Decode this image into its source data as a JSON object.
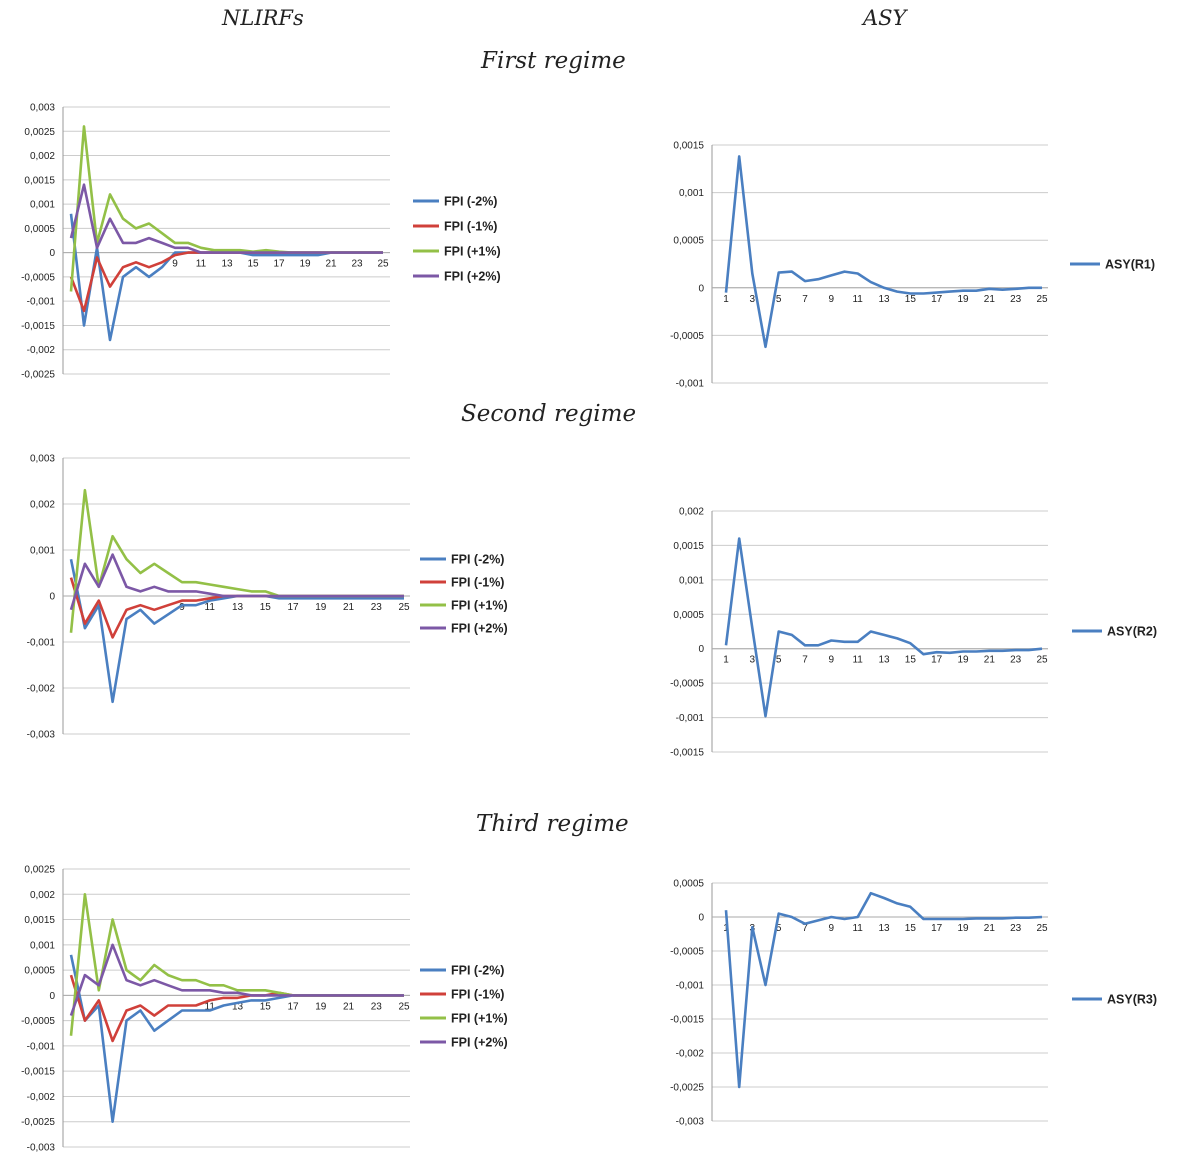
{
  "headers": {
    "left": "NLIRFs",
    "right": "ASY"
  },
  "regimes": [
    "First regime",
    "Second regime",
    "Third regime"
  ],
  "colors": {
    "fpi_m2": "#4a7fc1",
    "fpi_m1": "#d0403a",
    "fpi_p1": "#93c047",
    "fpi_p2": "#7c58a6",
    "asy": "#4a7fc1",
    "grid": "#cccccc"
  },
  "chart_data": [
    {
      "type": "line",
      "title": "",
      "categories": [
        1,
        2,
        3,
        4,
        5,
        6,
        7,
        8,
        9,
        10,
        11,
        12,
        13,
        14,
        15,
        16,
        17,
        18,
        19,
        20,
        21,
        22,
        23,
        24,
        25
      ],
      "x_tick_labels": [
        "9",
        "11",
        "13",
        "15",
        "17",
        "19",
        "21",
        "23",
        "25"
      ],
      "y_tick_labels": [
        "0,003",
        "0,0025",
        "0,002",
        "0,0015",
        "0,001",
        "0,0005",
        "0",
        "-0,0005",
        "-0,001",
        "-0,0015",
        "-0,002",
        "-0,0025"
      ],
      "ylim": [
        -0.0025,
        0.003
      ],
      "legend_position": "right",
      "series": [
        {
          "name": "FPI (-2%)",
          "color": "#4a7fc1",
          "values": [
            0.0008,
            -0.0015,
            0.0001,
            -0.0018,
            -0.0005,
            -0.0003,
            -0.0005,
            -0.0003,
            0,
            0,
            0,
            0,
            0,
            0,
            -5e-05,
            -5e-05,
            -5e-05,
            -5e-05,
            -5e-05,
            -5e-05,
            0,
            0,
            0,
            0,
            0
          ]
        },
        {
          "name": "FPI (-1%)",
          "color": "#d0403a",
          "values": [
            -0.0005,
            -0.0012,
            -0.0001,
            -0.0007,
            -0.0003,
            -0.0002,
            -0.0003,
            -0.0002,
            -5e-05,
            0,
            0,
            0,
            0,
            0,
            0,
            0,
            0,
            0,
            0,
            0,
            0,
            0,
            0,
            0,
            0
          ]
        },
        {
          "name": "FPI (+1%)",
          "color": "#93c047",
          "values": [
            -0.0008,
            0.0026,
            0.0002,
            0.0012,
            0.0007,
            0.0005,
            0.0006,
            0.0004,
            0.0002,
            0.0002,
            0.0001,
            5e-05,
            5e-05,
            5e-05,
            2e-05,
            5e-05,
            2e-05,
            0,
            0,
            0,
            0,
            0,
            0,
            0,
            0
          ]
        },
        {
          "name": "FPI (+2%)",
          "color": "#7c58a6",
          "values": [
            0.0003,
            0.0014,
            0.0001,
            0.0007,
            0.0002,
            0.0002,
            0.0003,
            0.0002,
            0.0001,
            0.0001,
            0,
            0,
            0,
            0,
            0,
            0,
            0,
            0,
            0,
            0,
            0,
            0,
            0,
            0,
            0
          ]
        }
      ]
    },
    {
      "type": "line",
      "title": "",
      "categories": [
        1,
        2,
        3,
        4,
        5,
        6,
        7,
        8,
        9,
        10,
        11,
        12,
        13,
        14,
        15,
        16,
        17,
        18,
        19,
        20,
        21,
        22,
        23,
        24,
        25
      ],
      "x_tick_labels": [
        "1",
        "3",
        "5",
        "7",
        "9",
        "11",
        "13",
        "15",
        "17",
        "19",
        "21",
        "23",
        "25"
      ],
      "y_tick_labels": [
        "0,0015",
        "0,001",
        "0,0005",
        "0",
        "-0,0005",
        "-0,001"
      ],
      "ylim": [
        -0.001,
        0.0015
      ],
      "legend_position": "right",
      "series": [
        {
          "name": "ASY(R1)",
          "color": "#4a7fc1",
          "values": [
            -5e-05,
            0.00138,
            0.00015,
            -0.00062,
            0.00016,
            0.00017,
            7e-05,
            9e-05,
            0.00013,
            0.00017,
            0.00015,
            6e-05,
            0,
            -4e-05,
            -6e-05,
            -6e-05,
            -5e-05,
            -4e-05,
            -3e-05,
            -3e-05,
            -1e-05,
            -2e-05,
            -1e-05,
            0,
            0
          ]
        }
      ]
    },
    {
      "type": "line",
      "title": "",
      "categories": [
        1,
        2,
        3,
        4,
        5,
        6,
        7,
        8,
        9,
        10,
        11,
        12,
        13,
        14,
        15,
        16,
        17,
        18,
        19,
        20,
        21,
        22,
        23,
        24,
        25
      ],
      "x_tick_labels": [
        "9",
        "11",
        "13",
        "15",
        "17",
        "19",
        "21",
        "23",
        "25"
      ],
      "y_tick_labels": [
        "0,003",
        "0,002",
        "0,001",
        "0",
        "-0,001",
        "-0,002",
        "-0,003"
      ],
      "ylim": [
        -0.003,
        0.003
      ],
      "legend_position": "right",
      "series": [
        {
          "name": "FPI (-2%)",
          "color": "#4a7fc1",
          "values": [
            0.0008,
            -0.0007,
            -0.0002,
            -0.0023,
            -0.0005,
            -0.0003,
            -0.0006,
            -0.0004,
            -0.0002,
            -0.0002,
            -0.0001,
            -5e-05,
            0,
            0,
            0,
            -5e-05,
            -5e-05,
            -5e-05,
            -5e-05,
            -5e-05,
            -5e-05,
            -5e-05,
            -5e-05,
            -5e-05,
            -5e-05
          ]
        },
        {
          "name": "FPI (-1%)",
          "color": "#d0403a",
          "values": [
            0.0004,
            -0.0006,
            -0.0001,
            -0.0009,
            -0.0003,
            -0.0002,
            -0.0003,
            -0.0002,
            -0.0001,
            -0.0001,
            -5e-05,
            0,
            0,
            0,
            0,
            0,
            0,
            0,
            0,
            0,
            0,
            0,
            0,
            0,
            0
          ]
        },
        {
          "name": "FPI (+1%)",
          "color": "#93c047",
          "values": [
            -0.0008,
            0.0023,
            0.0002,
            0.0013,
            0.0008,
            0.0005,
            0.0007,
            0.0005,
            0.0003,
            0.0003,
            0.00025,
            0.0002,
            0.00015,
            0.0001,
            0.0001,
            0,
            0,
            0,
            0,
            0,
            0,
            0,
            0,
            0,
            0
          ]
        },
        {
          "name": "FPI (+2%)",
          "color": "#7c58a6",
          "values": [
            -0.0003,
            0.0007,
            0.0002,
            0.0009,
            0.0002,
            0.0001,
            0.0002,
            0.0001,
            0.0001,
            0.0001,
            5e-05,
            0,
            0,
            0,
            0,
            0,
            0,
            0,
            0,
            0,
            0,
            0,
            0,
            0,
            0
          ]
        }
      ]
    },
    {
      "type": "line",
      "title": "",
      "categories": [
        1,
        2,
        3,
        4,
        5,
        6,
        7,
        8,
        9,
        10,
        11,
        12,
        13,
        14,
        15,
        16,
        17,
        18,
        19,
        20,
        21,
        22,
        23,
        24,
        25
      ],
      "x_tick_labels": [
        "1",
        "3",
        "5",
        "7",
        "9",
        "11",
        "13",
        "15",
        "17",
        "19",
        "21",
        "23",
        "25"
      ],
      "y_tick_labels": [
        "0,002",
        "0,0015",
        "0,001",
        "0,0005",
        "0",
        "-0,0005",
        "-0,001",
        "-0,0015"
      ],
      "ylim": [
        -0.0015,
        0.002
      ],
      "legend_position": "right",
      "series": [
        {
          "name": "ASY(R2)",
          "color": "#4a7fc1",
          "values": [
            5e-05,
            0.0016,
            0.0003,
            -0.00098,
            0.00025,
            0.0002,
            5e-05,
            5e-05,
            0.00012,
            0.0001,
            0.0001,
            0.00025,
            0.0002,
            0.00015,
            8e-05,
            -8e-05,
            -5e-05,
            -6e-05,
            -4e-05,
            -4e-05,
            -3e-05,
            -3e-05,
            -2e-05,
            -2e-05,
            0
          ]
        }
      ]
    },
    {
      "type": "line",
      "title": "",
      "categories": [
        1,
        2,
        3,
        4,
        5,
        6,
        7,
        8,
        9,
        10,
        11,
        12,
        13,
        14,
        15,
        16,
        17,
        18,
        19,
        20,
        21,
        22,
        23,
        24,
        25
      ],
      "x_tick_labels": [
        "11",
        "13",
        "15",
        "17",
        "19",
        "21",
        "23",
        "25"
      ],
      "y_tick_labels": [
        "0,0025",
        "0,002",
        "0,0015",
        "0,001",
        "0,0005",
        "0",
        "-0,0005",
        "-0,001",
        "-0,0015",
        "-0,002",
        "-0,0025",
        "-0,003"
      ],
      "ylim": [
        -0.003,
        0.0025
      ],
      "legend_position": "right",
      "series": [
        {
          "name": "FPI (-2%)",
          "color": "#4a7fc1",
          "values": [
            0.0008,
            -0.0005,
            -0.0002,
            -0.0025,
            -0.0005,
            -0.0003,
            -0.0007,
            -0.0005,
            -0.0003,
            -0.0003,
            -0.0003,
            -0.0002,
            -0.00015,
            -0.0001,
            -0.0001,
            -5e-05,
            0,
            0,
            0,
            0,
            0,
            0,
            0,
            0,
            0
          ]
        },
        {
          "name": "FPI (-1%)",
          "color": "#d0403a",
          "values": [
            0.0004,
            -0.0005,
            -0.0001,
            -0.0009,
            -0.0003,
            -0.0002,
            -0.0004,
            -0.0002,
            -0.0002,
            -0.0002,
            -0.0001,
            -5e-05,
            -5e-05,
            0,
            0,
            5e-05,
            0,
            0,
            0,
            0,
            0,
            0,
            0,
            0,
            0
          ]
        },
        {
          "name": "FPI (+1%)",
          "color": "#93c047",
          "values": [
            -0.0008,
            0.002,
            0.0001,
            0.0015,
            0.0005,
            0.0003,
            0.0006,
            0.0004,
            0.0003,
            0.0003,
            0.0002,
            0.0002,
            0.0001,
            0.0001,
            0.0001,
            5e-05,
            0,
            0,
            0,
            0,
            0,
            0,
            0,
            0,
            0
          ]
        },
        {
          "name": "FPI (+2%)",
          "color": "#7c58a6",
          "values": [
            -0.0004,
            0.0004,
            0.0002,
            0.001,
            0.0003,
            0.0002,
            0.0003,
            0.0002,
            0.0001,
            0.0001,
            0.0001,
            5e-05,
            5e-05,
            0,
            0,
            0,
            0,
            0,
            0,
            0,
            0,
            0,
            0,
            0,
            0
          ]
        }
      ]
    },
    {
      "type": "line",
      "title": "",
      "categories": [
        1,
        2,
        3,
        4,
        5,
        6,
        7,
        8,
        9,
        10,
        11,
        12,
        13,
        14,
        15,
        16,
        17,
        18,
        19,
        20,
        21,
        22,
        23,
        24,
        25
      ],
      "x_tick_labels": [
        "1",
        "3",
        "5",
        "7",
        "9",
        "11",
        "13",
        "15",
        "17",
        "19",
        "21",
        "23",
        "25"
      ],
      "y_tick_labels": [
        "0,0005",
        "0",
        "-0,0005",
        "-0,001",
        "-0,0015",
        "-0,002",
        "-0,0025",
        "-0,003"
      ],
      "ylim": [
        -0.003,
        0.0005
      ],
      "legend_position": "right",
      "series": [
        {
          "name": "ASY(R3)",
          "color": "#4a7fc1",
          "values": [
            0.0001,
            -0.0025,
            -0.00015,
            -0.001,
            5e-05,
            0,
            -0.0001,
            -5e-05,
            0,
            -3e-05,
            0,
            0.00035,
            0.00028,
            0.0002,
            0.00015,
            -3e-05,
            -3e-05,
            -3e-05,
            -3e-05,
            -2e-05,
            -2e-05,
            -2e-05,
            -1e-05,
            -1e-05,
            0
          ]
        }
      ]
    }
  ]
}
